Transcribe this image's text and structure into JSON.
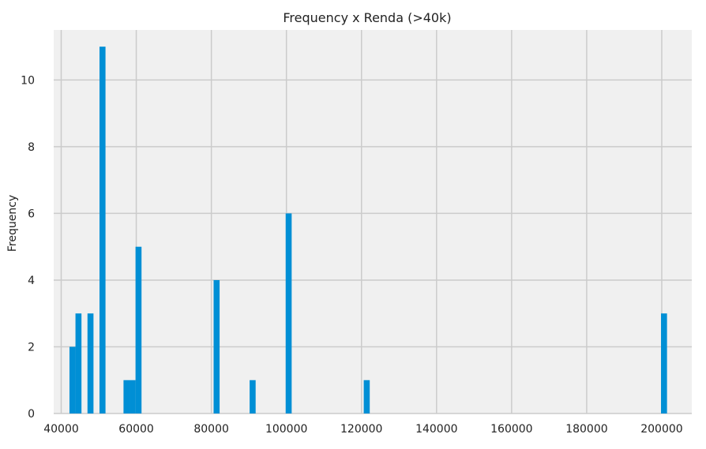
{
  "chart_data": {
    "type": "bar",
    "title": "Frequency x Renda (>40k)",
    "xlabel": "",
    "ylabel": "Frequency",
    "xlim": [
      38000,
      208000
    ],
    "ylim": [
      0,
      11.5
    ],
    "xticks": [
      40000,
      60000,
      80000,
      100000,
      120000,
      140000,
      160000,
      180000,
      200000
    ],
    "yticks": [
      0,
      2,
      4,
      6,
      8,
      10
    ],
    "grid": true,
    "bin_width": 1600,
    "bars": [
      {
        "x": 43000,
        "value": 2
      },
      {
        "x": 44600,
        "value": 3
      },
      {
        "x": 47800,
        "value": 3
      },
      {
        "x": 51000,
        "value": 11
      },
      {
        "x": 57400,
        "value": 1
      },
      {
        "x": 59000,
        "value": 1
      },
      {
        "x": 60600,
        "value": 5
      },
      {
        "x": 81400,
        "value": 4
      },
      {
        "x": 91000,
        "value": 1
      },
      {
        "x": 100600,
        "value": 6
      },
      {
        "x": 121400,
        "value": 1
      },
      {
        "x": 200600,
        "value": 3
      }
    ],
    "colors": {
      "bar": "#008fd5",
      "background": "#f0f0f0",
      "grid": "#cbcbcb"
    }
  }
}
